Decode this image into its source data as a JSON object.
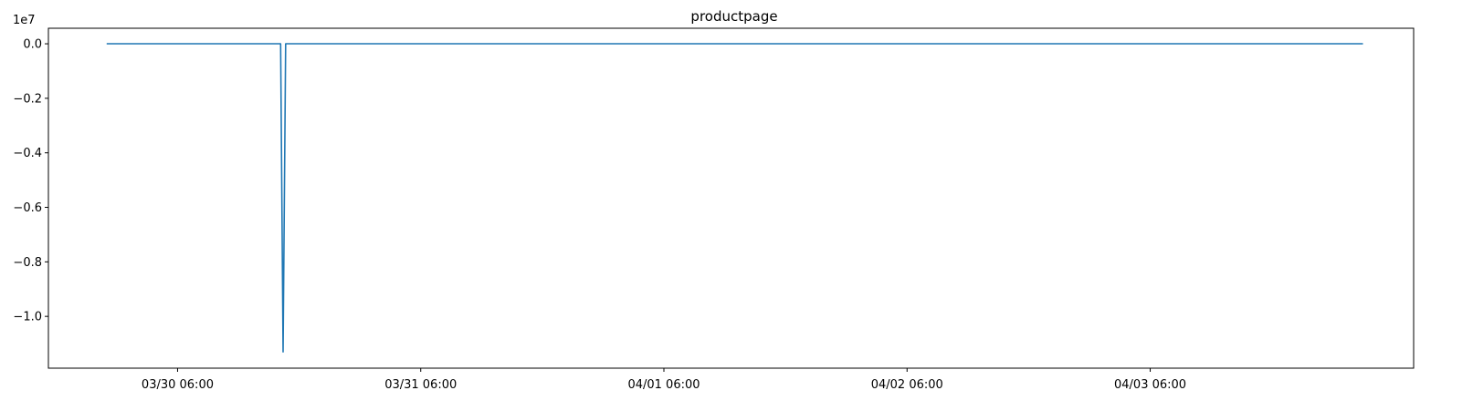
{
  "chart_data": {
    "type": "line",
    "title": "productpage",
    "xlabel": "",
    "ylabel": "",
    "y_multiplier_label": "1e7",
    "x_tick_labels": [
      "03/30 06:00",
      "03/31 06:00",
      "04/01 06:00",
      "04/02 06:00",
      "04/03 06:00"
    ],
    "x_ticks": [
      "2024-03-30T06:00",
      "2024-03-31T06:00",
      "2024-04-01T06:00",
      "2024-04-02T06:00",
      "2024-04-03T06:00"
    ],
    "xlim": [
      "2024-03-29T17:15",
      "2024-04-04T08:00"
    ],
    "y_tick_labels": [
      "0.0",
      "−0.2",
      "−0.4",
      "−0.6",
      "−0.8",
      "−1.0"
    ],
    "y_ticks": [
      0.0,
      -0.2,
      -0.4,
      -0.6,
      -0.8,
      -1.0
    ],
    "ylim": [
      -1.19,
      0.057
    ],
    "grid": false,
    "legend": "none",
    "series_color": "#1f77b4",
    "series": [
      {
        "x": [
          "2024-03-29T23:00",
          "2024-03-30T16:10",
          "2024-03-30T16:25",
          "2024-03-30T16:40",
          "2024-04-04T03:00"
        ],
        "values": [
          0.0,
          0.0,
          -1.13,
          0.0,
          0.0
        ]
      }
    ]
  }
}
